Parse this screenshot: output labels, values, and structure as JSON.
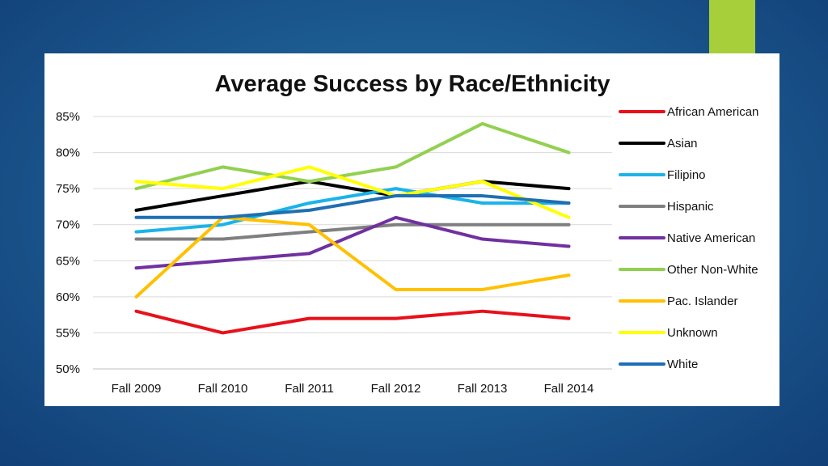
{
  "slide": {
    "background_color": "#1d5f93",
    "accent_color": "#a6cf3a"
  },
  "chart_data": {
    "type": "line",
    "title": "Average Success by Race/Ethnicity",
    "xlabel": "",
    "ylabel": "",
    "categories": [
      "Fall 2009",
      "Fall 2010",
      "Fall 2011",
      "Fall 2012",
      "Fall 2013",
      "Fall 2014"
    ],
    "ylim": [
      50,
      85
    ],
    "yticks": [
      50,
      55,
      60,
      65,
      70,
      75,
      80,
      85
    ],
    "ytick_labels": [
      "50%",
      "55%",
      "60%",
      "65%",
      "70%",
      "75%",
      "80%",
      "85%"
    ],
    "grid": true,
    "legend_position": "right",
    "series": [
      {
        "name": "African American",
        "color": "#e8101a",
        "values": [
          58,
          55,
          57,
          57,
          58,
          57
        ]
      },
      {
        "name": "Asian",
        "color": "#000000",
        "values": [
          72,
          74,
          76,
          74,
          76,
          75
        ]
      },
      {
        "name": "Filipino",
        "color": "#19b4e8",
        "values": [
          69,
          70,
          73,
          75,
          73,
          73
        ]
      },
      {
        "name": "Hispanic",
        "color": "#7f7f7f",
        "values": [
          68,
          68,
          69,
          70,
          70,
          70
        ]
      },
      {
        "name": "Native American",
        "color": "#7030a0",
        "values": [
          64,
          65,
          66,
          71,
          68,
          67
        ]
      },
      {
        "name": "Other Non-White",
        "color": "#92d050",
        "values": [
          75,
          78,
          76,
          78,
          84,
          80
        ]
      },
      {
        "name": "Pac. Islander",
        "color": "#ffc000",
        "values": [
          60,
          71,
          70,
          61,
          61,
          63
        ]
      },
      {
        "name": "Unknown",
        "color": "#ffff00",
        "values": [
          76,
          75,
          78,
          74,
          76,
          71
        ]
      },
      {
        "name": "White",
        "color": "#1f6fb2",
        "values": [
          71,
          71,
          72,
          74,
          74,
          73
        ]
      }
    ]
  }
}
